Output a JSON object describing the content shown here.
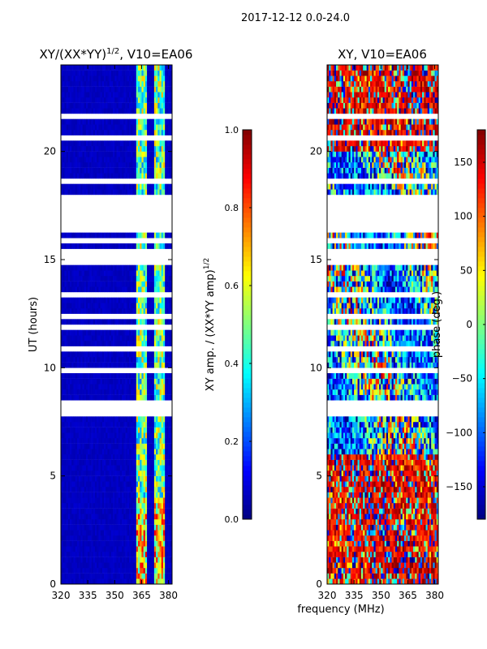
{
  "figure": {
    "suptitle": "2017-12-12 0.0-24.0",
    "xlabel": "frequency (MHz)"
  },
  "colors": {
    "jet": [
      "#00007f",
      "#0000ff",
      "#007fff",
      "#00ffff",
      "#7fff7f",
      "#ffff00",
      "#ff7f00",
      "#ff0000",
      "#7f0000"
    ],
    "frame": "#000000",
    "background": "#ffffff"
  },
  "chart_data": [
    {
      "type": "heatmap",
      "title": "XY/(XX*YY)",
      "title_sup": "1/2",
      "title_tail": ", V10=EA06",
      "xlabel": "",
      "ylabel": "UT (hours)",
      "xlim": [
        320,
        382
      ],
      "ylim": [
        0,
        24
      ],
      "xticks": [
        320,
        335,
        350,
        365,
        380
      ],
      "xtick_labels": [
        "320",
        "335",
        "350",
        "365",
        "380"
      ],
      "yticks": [
        0,
        5,
        10,
        15,
        20
      ],
      "ytick_labels": [
        "0",
        "5",
        "10",
        "15",
        "20"
      ],
      "colorbar": {
        "label": "XY amp. / (XX*YY amp)",
        "label_sup": "1/2",
        "vmin": 0.0,
        "vmax": 1.0,
        "ticks": [
          0.0,
          0.2,
          0.4,
          0.6,
          0.8,
          1.0
        ],
        "tick_labels": [
          "0.0",
          "0.2",
          "0.4",
          "0.6",
          "0.8",
          "1.0"
        ]
      },
      "description_of_values": "low amplitude (~0.05) over most band; higher amplitude (0.3-0.8) in bands 362-368 MHz and 372-378 MHz",
      "high_bands_mhz": [
        [
          362,
          368
        ],
        [
          372,
          378
        ]
      ],
      "background_value": 0.05,
      "data_gaps_hours": [
        [
          16.3,
          16.9
        ],
        [
          17.0,
          17.9
        ],
        [
          13.4,
          13.6
        ]
      ]
    },
    {
      "type": "heatmap",
      "title": "XY, V10=EA06",
      "xlabel": "",
      "ylabel": "",
      "xlim": [
        320,
        382
      ],
      "ylim": [
        0,
        24
      ],
      "xticks": [
        320,
        335,
        350,
        365,
        380
      ],
      "xtick_labels": [
        "320",
        "335",
        "350",
        "365",
        "380"
      ],
      "yticks": [
        0,
        5,
        10,
        15,
        20
      ],
      "ytick_labels": [
        "0",
        "5",
        "10",
        "15",
        "20"
      ],
      "colorbar": {
        "label": "phase (deg.)",
        "vmin": -180,
        "vmax": 180,
        "ticks": [
          -150,
          -100,
          -50,
          0,
          50,
          100,
          150
        ],
        "tick_labels": [
          "−150",
          "−100",
          "−50",
          "0",
          "50",
          "100",
          "150"
        ]
      },
      "description_of_values": "XY phase in degrees, noisy with coherent red (~+150) regions below 6 h and above 20 h",
      "data_gaps_hours": [
        [
          16.3,
          16.9
        ],
        [
          17.0,
          17.9
        ],
        [
          13.4,
          13.6
        ]
      ]
    }
  ]
}
